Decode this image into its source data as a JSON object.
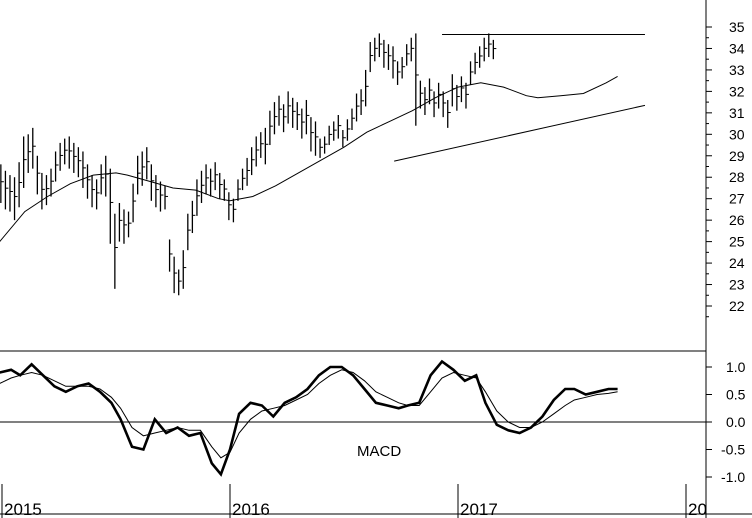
{
  "chart_data": [
    {
      "type": "bar",
      "subtype": "weekly high-low price bars with moving average and trendlines",
      "y_ticks": [
        22,
        23,
        24,
        25,
        26,
        27,
        28,
        29,
        30,
        31,
        32,
        33,
        34,
        35
      ],
      "ylim": [
        21.3,
        35.6
      ],
      "x_ticks": [
        "2015",
        "2016",
        "2017",
        "20"
      ],
      "x_tick_dates": [
        2015.0,
        2016.0,
        2017.0,
        2018.0
      ],
      "xlim": [
        2014.99,
        2017.82
      ],
      "grid": false,
      "bars_x": [
        2014.995,
        2015.015,
        2015.035,
        2015.055,
        2015.075,
        2015.095,
        2015.115,
        2015.135,
        2015.155,
        2015.175,
        2015.195,
        2015.215,
        2015.235,
        2015.255,
        2015.275,
        2015.295,
        2015.315,
        2015.335,
        2015.355,
        2015.375,
        2015.395,
        2015.415,
        2015.435,
        2015.455,
        2015.475,
        2015.495,
        2015.515,
        2015.535,
        2015.555,
        2015.575,
        2015.595,
        2015.615,
        2015.635,
        2015.655,
        2015.675,
        2015.695,
        2015.715,
        2015.735,
        2015.755,
        2015.775,
        2015.795,
        2015.815,
        2015.835,
        2015.855,
        2015.875,
        2015.895,
        2015.915,
        2015.935,
        2015.955,
        2015.975,
        2015.995,
        2016.015,
        2016.035,
        2016.055,
        2016.075,
        2016.095,
        2016.115,
        2016.135,
        2016.155,
        2016.175,
        2016.195,
        2016.215,
        2016.235,
        2016.255,
        2016.275,
        2016.295,
        2016.315,
        2016.335,
        2016.355,
        2016.375,
        2016.395,
        2016.415,
        2016.435,
        2016.455,
        2016.475,
        2016.495,
        2016.515,
        2016.535,
        2016.555,
        2016.575,
        2016.595,
        2016.615,
        2016.635,
        2016.655,
        2016.675,
        2016.695,
        2016.715,
        2016.735,
        2016.755,
        2016.775,
        2016.795,
        2016.815,
        2016.835,
        2016.855,
        2016.875,
        2016.895,
        2016.915,
        2016.935,
        2016.955,
        2016.975,
        2016.995,
        2017.015,
        2017.035,
        2017.055,
        2017.075,
        2017.095,
        2017.115,
        2017.135,
        2017.155,
        2017.175,
        2017.195,
        2017.215,
        2017.235,
        2017.255,
        2017.275,
        2017.295,
        2017.315,
        2017.335,
        2017.355,
        2017.375,
        2017.395,
        2017.415,
        2017.435,
        2017.455,
        2017.475,
        2017.495,
        2017.515,
        2017.535,
        2017.555,
        2017.575,
        2017.595,
        2017.615,
        2017.635,
        2017.655,
        2017.675,
        2017.695
      ],
      "bars_high": [
        28.6,
        28.3,
        28.1,
        28.0,
        28.7,
        29.9,
        30.0,
        30.3,
        29.0,
        28.2,
        28.1,
        28.4,
        29.2,
        29.6,
        29.8,
        29.9,
        29.6,
        29.4,
        29.2,
        28.6,
        28.1,
        27.9,
        28.6,
        29.0,
        28.4,
        26.3,
        26.8,
        26.5,
        26.4,
        27.7,
        29.0,
        29.2,
        29.4,
        28.6,
        28.1,
        27.8,
        27.6,
        25.1,
        24.3,
        23.7,
        24.6,
        26.3,
        26.9,
        27.9,
        28.3,
        28.6,
        28.4,
        28.7,
        28.2,
        27.9,
        27.3,
        27.0,
        27.9,
        28.4,
        28.9,
        29.4,
        29.9,
        30.1,
        30.3,
        31.1,
        31.5,
        31.8,
        31.4,
        32.0,
        31.7,
        31.5,
        31.2,
        31.6,
        30.8,
        30.6,
        29.8,
        29.9,
        30.4,
        30.6,
        30.9,
        30.2,
        30.7,
        31.2,
        31.9,
        32.1,
        33.0,
        34.3,
        34.5,
        34.7,
        34.4,
        34.2,
        34.1,
        33.4,
        33.6,
        34.2,
        34.5,
        34.7,
        32.5,
        32.2,
        32.6,
        32.0,
        32.4,
        32.0,
        31.6,
        32.8,
        32.3,
        32.7,
        32.4,
        33.4,
        33.8,
        34.1,
        34.5,
        34.7,
        34.4
      ],
      "bars_low": [
        26.8,
        26.5,
        26.4,
        26.0,
        26.6,
        27.5,
        28.2,
        28.4,
        27.2,
        26.5,
        26.7,
        27.1,
        27.8,
        28.3,
        28.6,
        28.4,
        28.2,
        28.0,
        27.5,
        27.0,
        26.6,
        26.5,
        27.2,
        27.1,
        24.9,
        22.8,
        25.0,
        24.9,
        25.2,
        25.9,
        27.2,
        27.6,
        27.9,
        26.9,
        26.6,
        26.4,
        26.5,
        23.6,
        22.6,
        22.5,
        22.8,
        24.6,
        25.4,
        26.2,
        26.8,
        27.2,
        27.1,
        27.4,
        27.0,
        26.9,
        26.0,
        25.9,
        26.9,
        27.4,
        27.6,
        28.1,
        28.5,
        28.9,
        28.6,
        29.5,
        30.0,
        30.4,
        30.1,
        30.5,
        30.3,
        30.2,
        29.8,
        30.0,
        29.2,
        29.0,
        28.9,
        29.1,
        29.5,
        29.7,
        29.8,
        29.4,
        29.7,
        30.2,
        30.6,
        30.9,
        31.3,
        32.9,
        33.4,
        33.6,
        33.1,
        33.0,
        32.6,
        32.3,
        32.6,
        33.2,
        33.4,
        30.4,
        31.2,
        30.9,
        31.4,
        30.8,
        31.2,
        30.8,
        30.3,
        31.3,
        31.1,
        31.5,
        31.2,
        32.3,
        32.8,
        33.1,
        33.4,
        33.6,
        33.5
      ],
      "moving_average": {
        "x": [
          2014.99,
          2015.1,
          2015.2,
          2015.3,
          2015.4,
          2015.5,
          2015.55,
          2015.65,
          2015.75,
          2015.85,
          2015.95,
          2016.0,
          2016.1,
          2016.2,
          2016.3,
          2016.4,
          2016.5,
          2016.6,
          2016.7,
          2016.8,
          2016.9,
          2017.0,
          2017.1,
          2017.2,
          2017.3,
          2017.35,
          2017.45,
          2017.55,
          2017.65,
          2017.7
        ],
        "y": [
          25.0,
          26.4,
          27.1,
          27.7,
          28.1,
          28.2,
          28.1,
          27.8,
          27.5,
          27.4,
          27.0,
          26.9,
          27.1,
          27.6,
          28.2,
          28.8,
          29.4,
          30.1,
          30.6,
          31.1,
          31.7,
          32.2,
          32.4,
          32.2,
          31.8,
          31.7,
          31.8,
          31.9,
          32.4,
          32.7
        ]
      },
      "trendlines": [
        {
          "x": [
            2016.72,
            2017.82
          ],
          "y": [
            28.75,
            31.35
          ]
        },
        {
          "x": [
            2016.93,
            2017.82
          ],
          "y": [
            34.65,
            34.65
          ]
        }
      ]
    },
    {
      "type": "line",
      "label": "MACD",
      "y_ticks": [
        "1.0",
        "0.5",
        "0.0",
        "-0.5",
        "-1.0"
      ],
      "ylim": [
        -1.1,
        1.3
      ],
      "zero_line": true,
      "x": [
        2014.99,
        2015.04,
        2015.08,
        2015.13,
        2015.18,
        2015.23,
        2015.28,
        2015.33,
        2015.38,
        2015.43,
        2015.48,
        2015.52,
        2015.57,
        2015.62,
        2015.67,
        2015.72,
        2015.77,
        2015.82,
        2015.87,
        2015.92,
        2015.96,
        2016.0,
        2016.04,
        2016.09,
        2016.14,
        2016.19,
        2016.24,
        2016.29,
        2016.34,
        2016.39,
        2016.44,
        2016.49,
        2016.54,
        2016.59,
        2016.64,
        2016.69,
        2016.74,
        2016.78,
        2016.83,
        2016.88,
        2016.93,
        2016.98,
        2017.03,
        2017.08,
        2017.12,
        2017.17,
        2017.22,
        2017.27,
        2017.32,
        2017.37,
        2017.42,
        2017.47,
        2017.51,
        2017.56,
        2017.61,
        2017.66,
        2017.7
      ],
      "series": [
        {
          "values": [
            0.9,
            0.95,
            0.85,
            1.05,
            0.85,
            0.65,
            0.55,
            0.65,
            0.7,
            0.55,
            0.35,
            0.05,
            -0.45,
            -0.5,
            0.05,
            -0.2,
            -0.1,
            -0.25,
            -0.2,
            -0.75,
            -0.95,
            -0.5,
            0.15,
            0.35,
            0.3,
            0.1,
            0.35,
            0.45,
            0.6,
            0.85,
            1.0,
            1.0,
            0.85,
            0.6,
            0.35,
            0.3,
            0.25,
            0.3,
            0.35,
            0.85,
            1.1,
            0.95,
            0.75,
            0.85,
            0.35,
            -0.05,
            -0.15,
            -0.2,
            -0.1,
            0.1,
            0.4,
            0.6,
            0.6,
            0.5,
            0.55,
            0.6,
            0.6
          ]
        },
        {
          "values": [
            0.7,
            0.8,
            0.85,
            0.9,
            0.85,
            0.75,
            0.65,
            0.65,
            0.65,
            0.6,
            0.45,
            0.25,
            -0.1,
            -0.25,
            -0.2,
            -0.15,
            -0.1,
            -0.15,
            -0.15,
            -0.45,
            -0.65,
            -0.55,
            -0.2,
            0.05,
            0.2,
            0.25,
            0.3,
            0.4,
            0.5,
            0.7,
            0.85,
            0.95,
            0.9,
            0.75,
            0.55,
            0.45,
            0.35,
            0.3,
            0.3,
            0.55,
            0.8,
            0.9,
            0.85,
            0.8,
            0.55,
            0.2,
            0.0,
            -0.1,
            -0.1,
            0.0,
            0.15,
            0.3,
            0.4,
            0.45,
            0.5,
            0.52,
            0.55
          ]
        }
      ]
    }
  ]
}
